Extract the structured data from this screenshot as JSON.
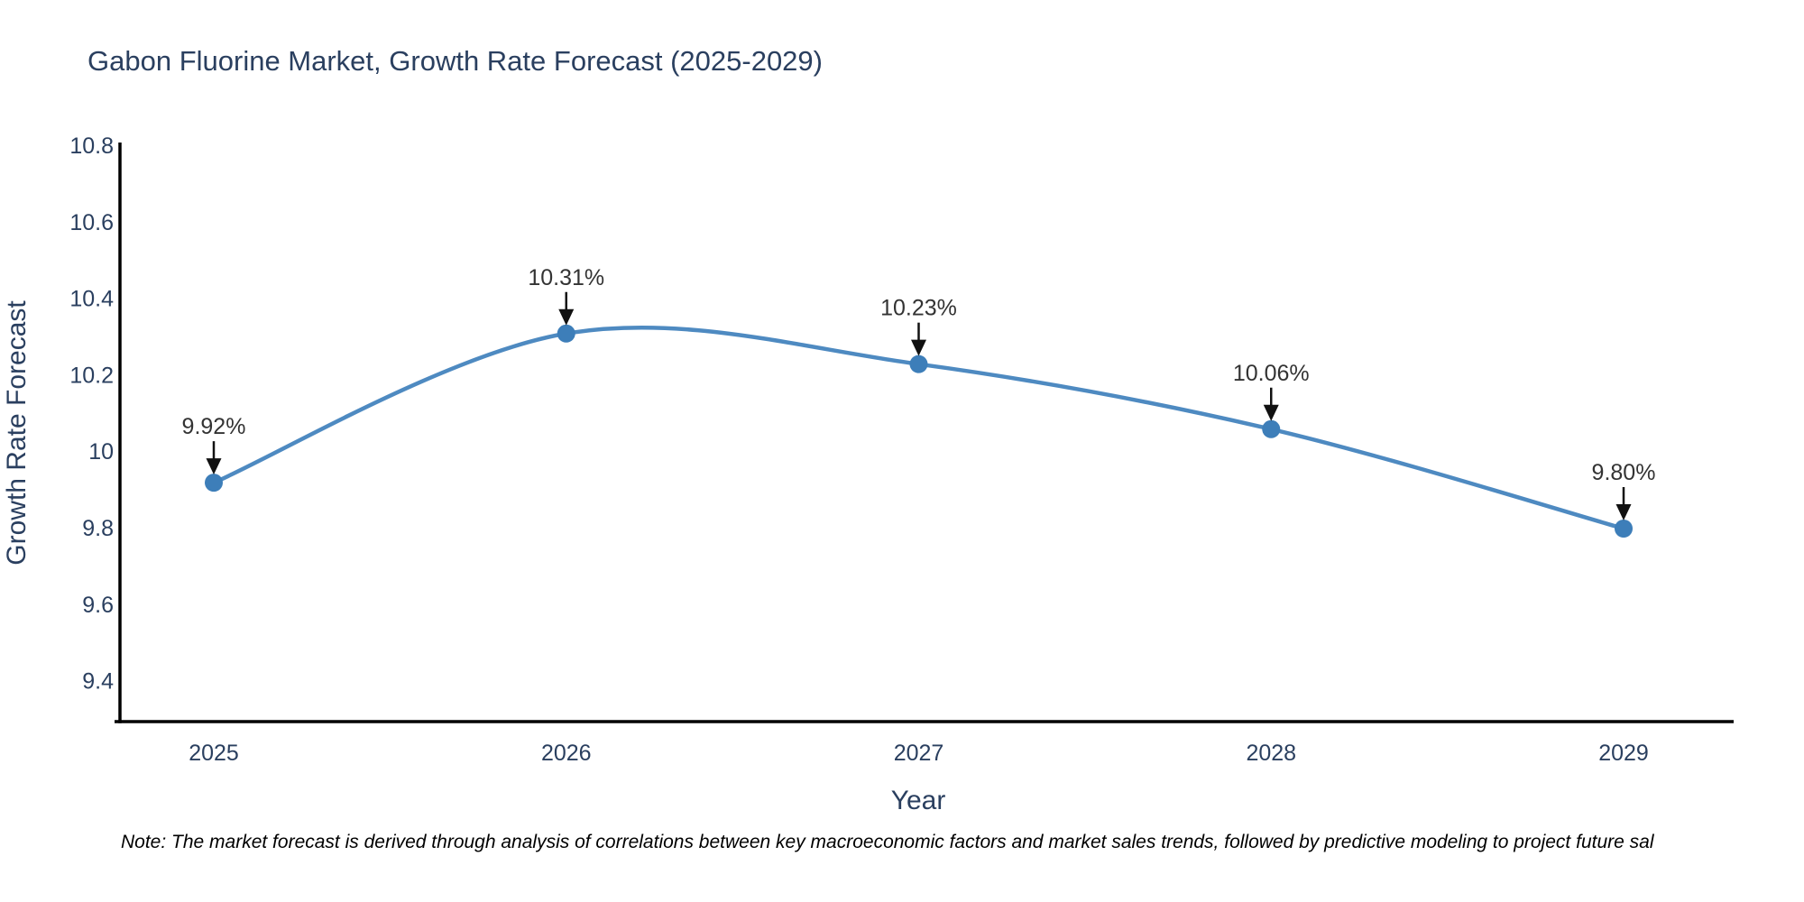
{
  "title": "Gabon Fluorine Market, Growth Rate Forecast (2025-2029)",
  "note": "Note: The market forecast is derived through analysis of correlations between key macroeconomic factors and market sales trends, followed by predictive modeling to project future sal",
  "chart_data": {
    "type": "line",
    "title": "Gabon Fluorine Market, Growth Rate Forecast (2025-2029)",
    "x": [
      2025,
      2026,
      2027,
      2028,
      2029
    ],
    "y": [
      9.92,
      10.31,
      10.23,
      10.06,
      9.8
    ],
    "point_labels": [
      "9.92%",
      "10.31%",
      "10.23%",
      "10.06%",
      "9.80%"
    ],
    "xlabel": "Year",
    "ylabel": "Growth Rate Forecast",
    "xticklabels": [
      "2025",
      "2026",
      "2027",
      "2028",
      "2029"
    ],
    "yticks": [
      10.8,
      10.6,
      10.4,
      10.2,
      10,
      9.8,
      9.6,
      9.4
    ],
    "yticklabels": [
      "10.8",
      "10.6",
      "10.4",
      "10.2",
      "10",
      "9.8",
      "9.6",
      "9.4"
    ],
    "ylim": [
      9.3,
      10.8
    ],
    "grid": false,
    "legend": "none",
    "smooth": true,
    "annotation_arrows": true,
    "colors": {
      "line": "#4e8ac1",
      "marker": "#3d7eb9",
      "axis_line": "#000000",
      "arrow": "#111111",
      "title_text": "#2a3f5f",
      "tick_text": "#2a3f5f",
      "label_text": "#333333"
    }
  }
}
